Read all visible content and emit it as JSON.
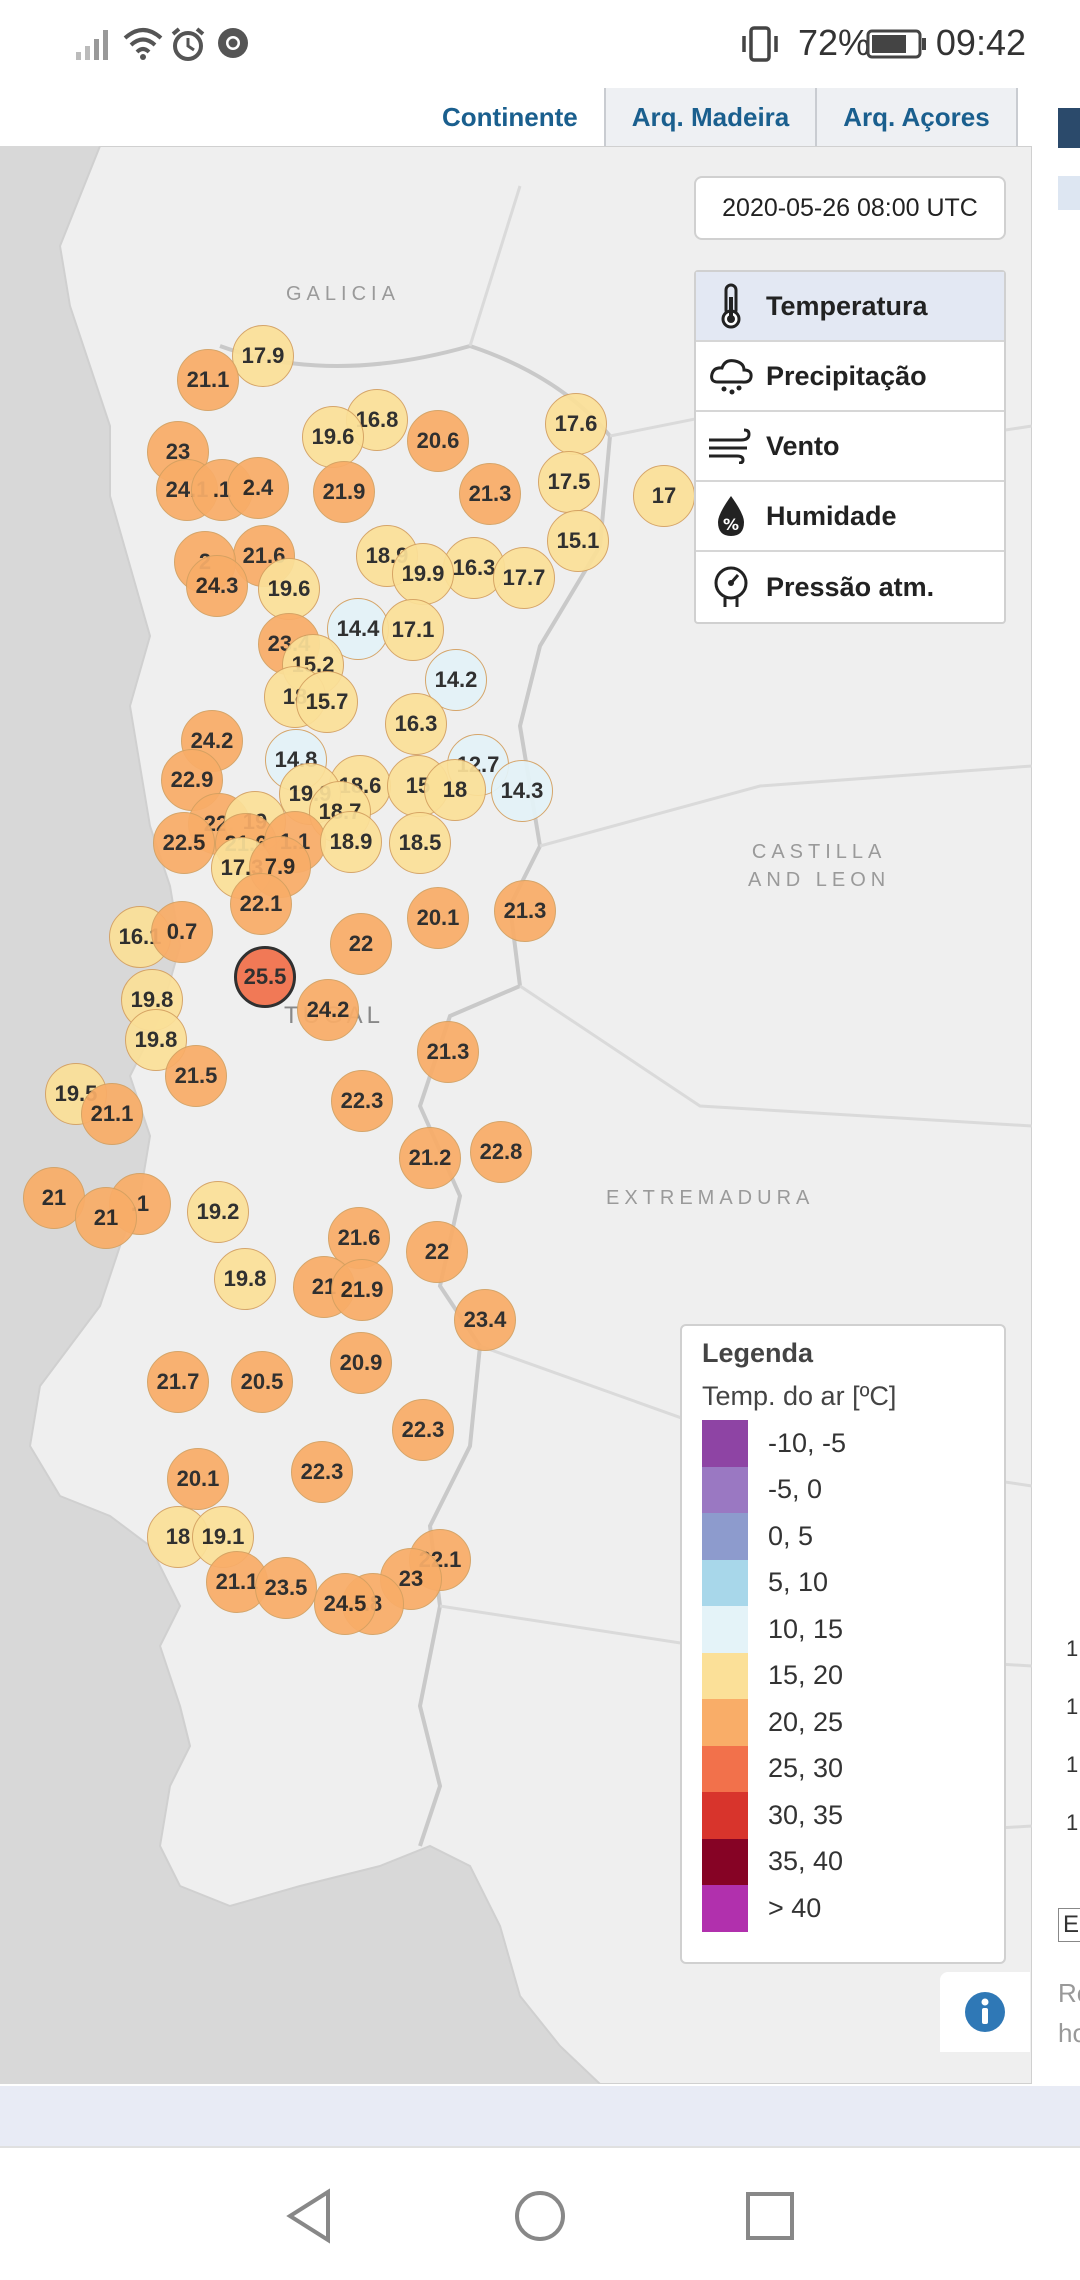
{
  "status_bar": {
    "battery_percent": "72%",
    "time": "09:42",
    "icons": [
      "signal-icon",
      "wifi-icon",
      "alarm-icon",
      "chrome-icon",
      "vibrate-icon",
      "battery-icon"
    ]
  },
  "tabs": [
    {
      "label": "Continente",
      "active": true
    },
    {
      "label": "Arq. Madeira",
      "active": false
    },
    {
      "label": "Arq. Açores",
      "active": false
    }
  ],
  "map": {
    "datetime": "2020-05-26 08:00 UTC",
    "regions": [
      "GALICIA",
      "CASTILLA\nAND LEON",
      "EXTREMADURA",
      "TUGAL"
    ]
  },
  "layers": [
    {
      "label": "Temperatura",
      "icon": "thermometer-icon",
      "active": true
    },
    {
      "label": "Precipitação",
      "icon": "rain-cloud-icon",
      "active": false
    },
    {
      "label": "Vento",
      "icon": "wind-icon",
      "active": false
    },
    {
      "label": "Humidade",
      "icon": "humidity-drop-icon",
      "active": false
    },
    {
      "label": "Pressão atm.",
      "icon": "pressure-gauge-icon",
      "active": false
    }
  ],
  "legend": {
    "title": "Legenda",
    "subtitle": "Temp. do ar [ºC]",
    "classes": [
      {
        "label": "-10, -5",
        "color": "#8e44a4"
      },
      {
        "label": "-5, 0",
        "color": "#9a78c2"
      },
      {
        "label": "0, 5",
        "color": "#8d9bcd"
      },
      {
        "label": "5, 10",
        "color": "#a8d7ea"
      },
      {
        "label": "10, 15",
        "color": "#e4f3f8"
      },
      {
        "label": "15, 20",
        "color": "#fbe098"
      },
      {
        "label": "20, 25",
        "color": "#f9ad68"
      },
      {
        "label": "25, 30",
        "color": "#f2714b"
      },
      {
        "label": "30, 35",
        "color": "#d8342c"
      },
      {
        "label": "35, 40",
        "color": "#860325"
      },
      {
        "label": "> 40",
        "color": "#b130ad"
      }
    ]
  },
  "stations": [
    {
      "v": "17.9"
    },
    {
      "v": "21.1"
    },
    {
      "v": "16.8"
    },
    {
      "v": "19.6"
    },
    {
      "v": "20.6"
    },
    {
      "v": "17.6"
    },
    {
      "v": "23"
    },
    {
      "v": "24.1"
    },
    {
      "v": ".1"
    },
    {
      "v": "2.4"
    },
    {
      "v": "21.9"
    },
    {
      "v": "21.3"
    },
    {
      "v": "17.5"
    },
    {
      "v": "17"
    },
    {
      "v": "21.6"
    },
    {
      "v": "18.9"
    },
    {
      "v": "15.1"
    },
    {
      "v": "2"
    },
    {
      "v": "16.3"
    },
    {
      "v": "19.9"
    },
    {
      "v": "17.7"
    },
    {
      "v": "24.3"
    },
    {
      "v": "19.6"
    },
    {
      "v": "14.4"
    },
    {
      "v": "17.1"
    },
    {
      "v": "23.4"
    },
    {
      "v": "15.2"
    },
    {
      "v": "14.2"
    },
    {
      "v": "18"
    },
    {
      "v": "15.7"
    },
    {
      "v": "16.3"
    },
    {
      "v": "24.2"
    },
    {
      "v": "14.8"
    },
    {
      "v": "12.7"
    },
    {
      "v": "22.9"
    },
    {
      "v": "18.6"
    },
    {
      "v": "15"
    },
    {
      "v": "19.9"
    },
    {
      "v": "18"
    },
    {
      "v": "14.3"
    },
    {
      "v": "22."
    },
    {
      "v": "19"
    },
    {
      "v": "18.7"
    },
    {
      "v": "22.5"
    },
    {
      "v": "21.6"
    },
    {
      "v": "1.1"
    },
    {
      "v": "18.9"
    },
    {
      "v": "18.5"
    },
    {
      "v": "17.3"
    },
    {
      "v": "7.9"
    },
    {
      "v": "22.1"
    },
    {
      "v": "20.1"
    },
    {
      "v": "21.3"
    },
    {
      "v": "16.1"
    },
    {
      "v": "0.7"
    },
    {
      "v": "22"
    },
    {
      "v": "25.5"
    },
    {
      "v": "19.8"
    },
    {
      "v": "24.2"
    },
    {
      "v": "19.8"
    },
    {
      "v": "21.3"
    },
    {
      "v": "21.5"
    },
    {
      "v": "19.5"
    },
    {
      "v": "22.3"
    },
    {
      "v": "21.1"
    },
    {
      "v": "21.2"
    },
    {
      "v": "22.8"
    },
    {
      "v": "21"
    },
    {
      "v": ".1"
    },
    {
      "v": "21"
    },
    {
      "v": "19.2"
    },
    {
      "v": "21.6"
    },
    {
      "v": "22"
    },
    {
      "v": "19.8"
    },
    {
      "v": "21"
    },
    {
      "v": "21.9"
    },
    {
      "v": "23.4"
    },
    {
      "v": "21.7"
    },
    {
      "v": "20.5"
    },
    {
      "v": "20.9"
    },
    {
      "v": "22.3"
    },
    {
      "v": "20.1"
    },
    {
      "v": "22.3"
    },
    {
      "v": "18"
    },
    {
      "v": "19.1"
    },
    {
      "v": "22.1"
    },
    {
      "v": "21.1"
    },
    {
      "v": "23.5"
    },
    {
      "v": "23"
    },
    {
      "v": ".8"
    },
    {
      "v": "24.5"
    }
  ],
  "right_edge_fragments": [
    "1",
    "1",
    "1",
    "1",
    "E",
    "Re",
    "ho"
  ]
}
